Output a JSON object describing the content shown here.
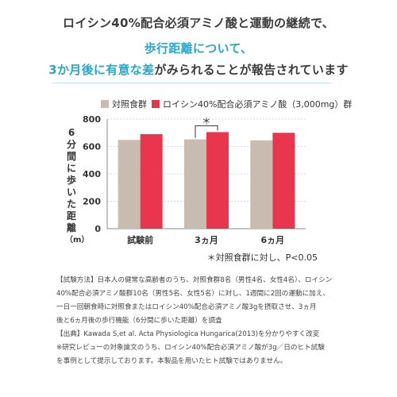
{
  "headline": {
    "line1": "ロイシン40%配合必須アミノ酸と運動の継続で、",
    "line2": "歩行距離について、",
    "line3_highlight": "3か月後に有意な差",
    "line3_rest": "がみられることが報告されています"
  },
  "colors": {
    "control": "#c8bcb0",
    "treatment": "#e8364f",
    "accent": "#29a7c9"
  },
  "chart_data": {
    "type": "bar",
    "categories": [
      "試験前",
      "3ヵ月",
      "6ヵ月"
    ],
    "series": [
      {
        "name": "対照食群",
        "values": [
          648,
          652,
          645
        ]
      },
      {
        "name": "ロイシン40%配合必須アミノ酸（3,000mg）群",
        "values": [
          690,
          705,
          700
        ]
      }
    ],
    "ylabel": "6分間に歩いた距離（m）",
    "ylabel_chars": [
      "6",
      "分",
      "間",
      "に",
      "歩",
      "い",
      "た",
      "距",
      "離",
      "（m）"
    ],
    "ylim": [
      0,
      800
    ],
    "yticks": [
      "0",
      "200",
      "400",
      "600",
      "800"
    ],
    "grid": true,
    "annotation": "＊",
    "annotation_category": 1
  },
  "significance_note": "＊対照食群に対し、P<0.05",
  "footnotes": [
    "【試験方法】日本人の健常な高齢者のうち、対照食群8名（男性4名、女性4名）、ロイシン",
    "40%配合必須アミノ酸群10名（男性5名、女性5名）に対し、1週間に2回の運動に加え、",
    "一日一回朝食時に対照食またはロイシン40%配合必須アミノ酸3gを摂取させ、3ヵ月",
    "後と6ヵ月後の歩行機能（6分間に歩いた距離）を調査",
    "【出典】Kawada S,et al. Acta Physiologica Hungarica(2013)を分かりやすく改変",
    "※研究レビューの対象論文のうち、ロイシン40%配合必須アミノ酸が3g／日のヒト試験",
    "を事例として提示しております。本製品を用いたヒト試験ではありません。"
  ]
}
